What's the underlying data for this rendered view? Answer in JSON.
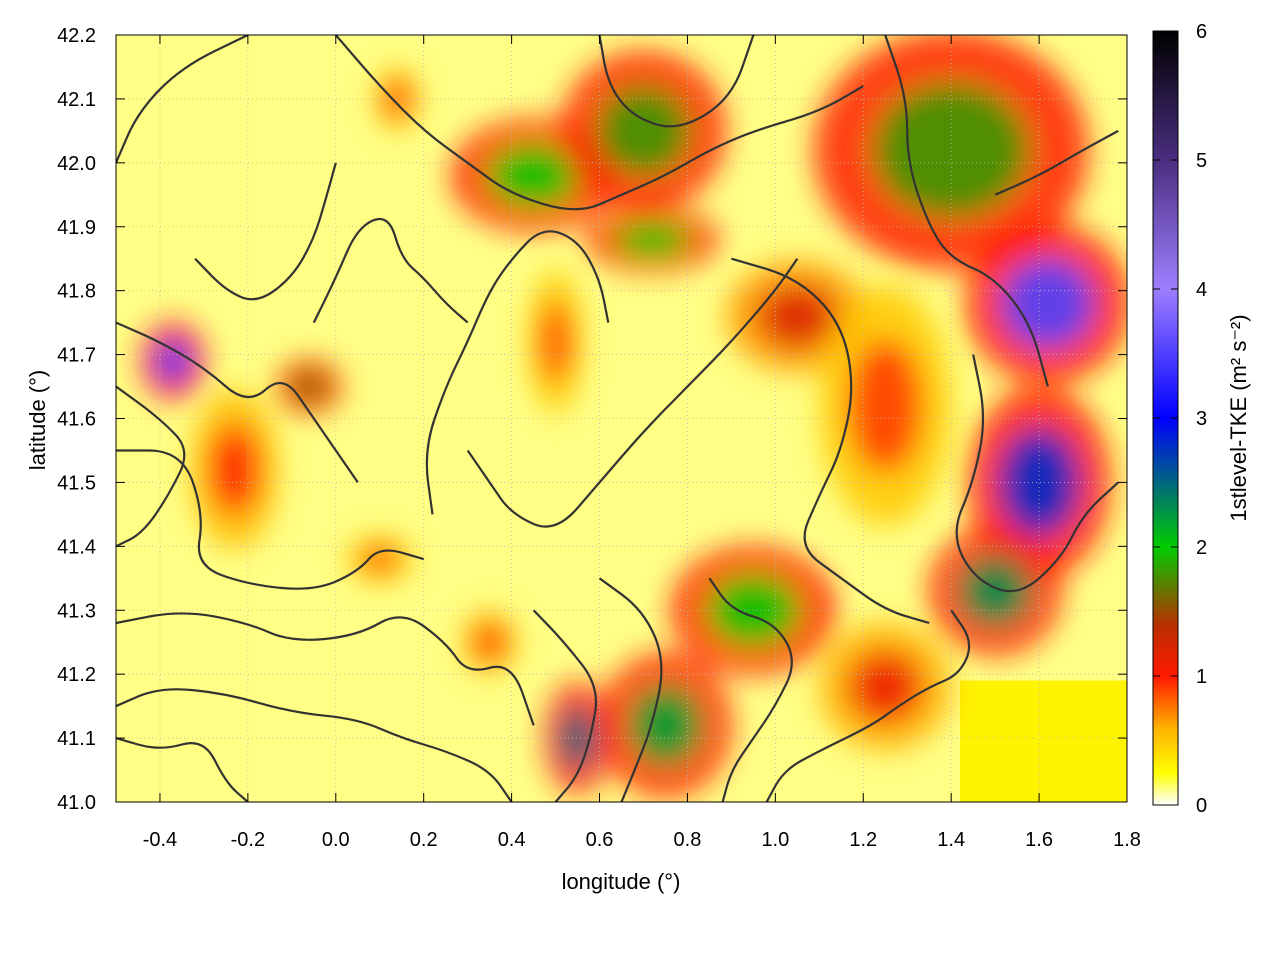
{
  "chart_data": {
    "type": "heatmap",
    "title": "",
    "xlabel": "longitude (°)",
    "ylabel": "latitude (°)",
    "xlim": [
      -0.5,
      1.8
    ],
    "ylim": [
      41.0,
      42.2
    ],
    "x_ticks": [
      -0.4,
      -0.2,
      0.0,
      0.2,
      0.4,
      0.6,
      0.8,
      1.0,
      1.2,
      1.4,
      1.6,
      1.8
    ],
    "x_tick_labels": [
      "-0.4",
      "-0.2",
      "0.0",
      "0.2",
      "0.4",
      "0.6",
      "0.8",
      "1.0",
      "1.2",
      "1.4",
      "1.6",
      "1.8"
    ],
    "y_ticks": [
      41.0,
      41.1,
      41.2,
      41.3,
      41.4,
      41.5,
      41.6,
      41.7,
      41.8,
      41.9,
      42.0,
      42.1,
      42.2
    ],
    "y_tick_labels": [
      "41.0",
      "41.1",
      "41.2",
      "41.3",
      "41.4",
      "41.5",
      "41.6",
      "41.7",
      "41.8",
      "41.9",
      "42.0",
      "42.1",
      "42.2"
    ],
    "grid": true,
    "colorbar": {
      "label": "1stlevel-TKE (m² s⁻²)",
      "range": [
        0,
        6
      ],
      "ticks": [
        0,
        1,
        2,
        3,
        4,
        5,
        6
      ],
      "tick_labels": [
        "0",
        "1",
        "2",
        "3",
        "4",
        "5",
        "6"
      ],
      "stops": [
        {
          "value": 0.0,
          "color": "#ffffff"
        },
        {
          "value": 0.25,
          "color": "#ffff00"
        },
        {
          "value": 0.6,
          "color": "#ffb000"
        },
        {
          "value": 1.0,
          "color": "#ff1800"
        },
        {
          "value": 1.4,
          "color": "#b83000"
        },
        {
          "value": 2.0,
          "color": "#00cc00"
        },
        {
          "value": 3.0,
          "color": "#0000ff"
        },
        {
          "value": 4.0,
          "color": "#9f7fff"
        },
        {
          "value": 5.0,
          "color": "#4a2e80"
        },
        {
          "value": 6.0,
          "color": "#000000"
        }
      ]
    },
    "hotspots": [
      {
        "lon": -0.37,
        "lat": 41.69,
        "rx": 0.06,
        "ry": 0.05,
        "value": 3.5
      },
      {
        "lon": -0.23,
        "lat": 41.52,
        "rx": 0.08,
        "ry": 0.1,
        "value": 1.0
      },
      {
        "lon": -0.06,
        "lat": 41.65,
        "rx": 0.06,
        "ry": 0.035,
        "value": 1.6
      },
      {
        "lon": 0.14,
        "lat": 42.1,
        "rx": 0.04,
        "ry": 0.04,
        "value": 1.0
      },
      {
        "lon": 0.5,
        "lat": 41.72,
        "rx": 0.05,
        "ry": 0.09,
        "value": 0.9
      },
      {
        "lon": 0.45,
        "lat": 41.98,
        "rx": 0.15,
        "ry": 0.07,
        "value": 2.0
      },
      {
        "lon": 0.7,
        "lat": 42.05,
        "rx": 0.15,
        "ry": 0.1,
        "value": 1.8
      },
      {
        "lon": 0.72,
        "lat": 41.88,
        "rx": 0.12,
        "ry": 0.04,
        "value": 2.0
      },
      {
        "lon": 1.05,
        "lat": 41.76,
        "rx": 0.13,
        "ry": 0.07,
        "value": 1.2
      },
      {
        "lon": 1.25,
        "lat": 41.62,
        "rx": 0.12,
        "ry": 0.15,
        "value": 0.9
      },
      {
        "lon": 1.4,
        "lat": 42.02,
        "rx": 0.25,
        "ry": 0.15,
        "value": 1.8
      },
      {
        "lon": 1.62,
        "lat": 41.78,
        "rx": 0.15,
        "ry": 0.1,
        "value": 3.5
      },
      {
        "lon": 1.6,
        "lat": 41.5,
        "rx": 0.13,
        "ry": 0.12,
        "value": 2.8
      },
      {
        "lon": 1.5,
        "lat": 41.33,
        "rx": 0.12,
        "ry": 0.08,
        "value": 2.3
      },
      {
        "lon": 0.95,
        "lat": 41.3,
        "rx": 0.15,
        "ry": 0.08,
        "value": 2.0
      },
      {
        "lon": 0.75,
        "lat": 41.12,
        "rx": 0.12,
        "ry": 0.09,
        "value": 2.2
      },
      {
        "lon": 0.55,
        "lat": 41.1,
        "rx": 0.06,
        "ry": 0.07,
        "value": 2.5
      },
      {
        "lon": 1.25,
        "lat": 41.18,
        "rx": 0.12,
        "ry": 0.08,
        "value": 1.1
      },
      {
        "lon": 0.35,
        "lat": 41.25,
        "rx": 0.05,
        "ry": 0.04,
        "value": 1.0
      },
      {
        "lon": 0.1,
        "lat": 41.38,
        "rx": 0.06,
        "ry": 0.03,
        "value": 0.9
      }
    ],
    "sea_region": {
      "lon_min": 1.42,
      "lon_max": 1.8,
      "lat_min": 41.0,
      "lat_max": 41.19,
      "value": 0.3
    },
    "contours": [
      [
        [
          -0.5,
          42.0
        ],
        [
          -0.45,
          42.08
        ],
        [
          -0.35,
          42.15
        ],
        [
          -0.2,
          42.2
        ]
      ],
      [
        [
          -0.5,
          41.75
        ],
        [
          -0.4,
          41.72
        ],
        [
          -0.3,
          41.68
        ],
        [
          -0.2,
          41.62
        ],
        [
          -0.12,
          41.67
        ],
        [
          -0.05,
          41.6
        ],
        [
          0.0,
          41.55
        ],
        [
          0.05,
          41.5
        ]
      ],
      [
        [
          -0.5,
          41.55
        ],
        [
          -0.35,
          41.55
        ],
        [
          -0.3,
          41.45
        ],
        [
          -0.32,
          41.37
        ],
        [
          -0.2,
          41.34
        ],
        [
          -0.05,
          41.33
        ],
        [
          0.05,
          41.36
        ],
        [
          0.1,
          41.4
        ],
        [
          0.2,
          41.38
        ]
      ],
      [
        [
          -0.5,
          41.28
        ],
        [
          -0.35,
          41.3
        ],
        [
          -0.2,
          41.28
        ],
        [
          -0.1,
          41.25
        ],
        [
          0.05,
          41.26
        ],
        [
          0.15,
          41.3
        ],
        [
          0.25,
          41.25
        ],
        [
          0.3,
          41.2
        ],
        [
          0.4,
          41.22
        ],
        [
          0.45,
          41.12
        ]
      ],
      [
        [
          -0.5,
          41.15
        ],
        [
          -0.4,
          41.18
        ],
        [
          -0.25,
          41.17
        ],
        [
          -0.1,
          41.14
        ],
        [
          0.05,
          41.13
        ],
        [
          0.15,
          41.1
        ],
        [
          0.25,
          41.08
        ],
        [
          0.35,
          41.05
        ],
        [
          0.4,
          41.0
        ]
      ],
      [
        [
          -0.5,
          41.1
        ],
        [
          -0.4,
          41.08
        ],
        [
          -0.3,
          41.1
        ],
        [
          -0.25,
          41.03
        ],
        [
          -0.2,
          41.0
        ]
      ],
      [
        [
          0.22,
          41.45
        ],
        [
          0.2,
          41.55
        ],
        [
          0.25,
          41.65
        ],
        [
          0.3,
          41.72
        ],
        [
          0.35,
          41.8
        ],
        [
          0.4,
          41.85
        ],
        [
          0.47,
          41.9
        ],
        [
          0.55,
          41.88
        ],
        [
          0.6,
          41.82
        ],
        [
          0.62,
          41.75
        ]
      ],
      [
        [
          0.3,
          41.55
        ],
        [
          0.35,
          41.5
        ],
        [
          0.4,
          41.45
        ],
        [
          0.5,
          41.42
        ],
        [
          0.6,
          41.5
        ],
        [
          0.7,
          41.58
        ],
        [
          0.8,
          41.65
        ],
        [
          0.9,
          41.72
        ],
        [
          1.0,
          41.8
        ],
        [
          1.05,
          41.85
        ]
      ],
      [
        [
          0.0,
          42.2
        ],
        [
          0.1,
          42.12
        ],
        [
          0.2,
          42.05
        ],
        [
          0.3,
          42.0
        ],
        [
          0.4,
          41.95
        ],
        [
          0.55,
          41.92
        ],
        [
          0.65,
          41.95
        ],
        [
          0.75,
          41.98
        ],
        [
          0.85,
          42.02
        ],
        [
          0.95,
          42.05
        ],
        [
          1.1,
          42.08
        ],
        [
          1.2,
          42.12
        ]
      ],
      [
        [
          0.6,
          42.2
        ],
        [
          0.62,
          42.12
        ],
        [
          0.68,
          42.07
        ],
        [
          0.78,
          42.05
        ],
        [
          0.9,
          42.1
        ],
        [
          0.95,
          42.2
        ]
      ],
      [
        [
          0.9,
          41.85
        ],
        [
          1.05,
          41.82
        ],
        [
          1.15,
          41.75
        ],
        [
          1.18,
          41.65
        ],
        [
          1.15,
          41.55
        ],
        [
          1.1,
          41.48
        ],
        [
          1.05,
          41.4
        ],
        [
          1.15,
          41.35
        ],
        [
          1.25,
          41.3
        ],
        [
          1.35,
          41.28
        ]
      ],
      [
        [
          0.85,
          41.35
        ],
        [
          0.9,
          41.3
        ],
        [
          1.0,
          41.28
        ],
        [
          1.05,
          41.22
        ],
        [
          1.0,
          41.15
        ],
        [
          0.95,
          41.1
        ],
        [
          0.9,
          41.05
        ],
        [
          0.88,
          41.0
        ]
      ],
      [
        [
          0.6,
          41.35
        ],
        [
          0.7,
          41.3
        ],
        [
          0.75,
          41.22
        ],
        [
          0.72,
          41.12
        ],
        [
          0.68,
          41.05
        ],
        [
          0.65,
          41.0
        ]
      ],
      [
        [
          0.45,
          41.3
        ],
        [
          0.52,
          41.25
        ],
        [
          0.6,
          41.18
        ],
        [
          0.58,
          41.1
        ],
        [
          0.55,
          41.04
        ],
        [
          0.5,
          41.0
        ]
      ],
      [
        [
          1.25,
          42.2
        ],
        [
          1.3,
          42.1
        ],
        [
          1.3,
          42.0
        ],
        [
          1.35,
          41.9
        ],
        [
          1.4,
          41.85
        ],
        [
          1.5,
          41.82
        ],
        [
          1.58,
          41.75
        ],
        [
          1.62,
          41.65
        ]
      ],
      [
        [
          1.45,
          41.7
        ],
        [
          1.48,
          41.6
        ],
        [
          1.45,
          41.5
        ],
        [
          1.4,
          41.42
        ],
        [
          1.45,
          41.35
        ],
        [
          1.55,
          41.32
        ],
        [
          1.65,
          41.38
        ],
        [
          1.7,
          41.45
        ],
        [
          1.78,
          41.5
        ]
      ],
      [
        [
          1.4,
          41.3
        ],
        [
          1.45,
          41.25
        ],
        [
          1.42,
          41.2
        ],
        [
          1.35,
          41.18
        ],
        [
          1.28,
          41.15
        ],
        [
          1.22,
          41.12
        ],
        [
          1.1,
          41.08
        ],
        [
          1.02,
          41.05
        ],
        [
          0.98,
          41.0
        ]
      ],
      [
        [
          1.5,
          41.95
        ],
        [
          1.6,
          41.98
        ],
        [
          1.7,
          42.02
        ],
        [
          1.78,
          42.05
        ]
      ],
      [
        [
          -0.05,
          41.75
        ],
        [
          0.0,
          41.82
        ],
        [
          0.05,
          41.9
        ],
        [
          0.12,
          41.92
        ],
        [
          0.15,
          41.85
        ],
        [
          0.2,
          41.82
        ],
        [
          0.25,
          41.78
        ],
        [
          0.3,
          41.75
        ]
      ],
      [
        [
          -0.32,
          41.85
        ],
        [
          -0.25,
          41.8
        ],
        [
          -0.18,
          41.78
        ],
        [
          -0.1,
          41.82
        ],
        [
          -0.05,
          41.88
        ],
        [
          -0.02,
          41.95
        ],
        [
          0.0,
          42.0
        ]
      ],
      [
        [
          -0.5,
          41.65
        ],
        [
          -0.4,
          41.6
        ],
        [
          -0.33,
          41.55
        ],
        [
          -0.38,
          41.48
        ],
        [
          -0.44,
          41.42
        ],
        [
          -0.5,
          41.4
        ]
      ]
    ]
  }
}
